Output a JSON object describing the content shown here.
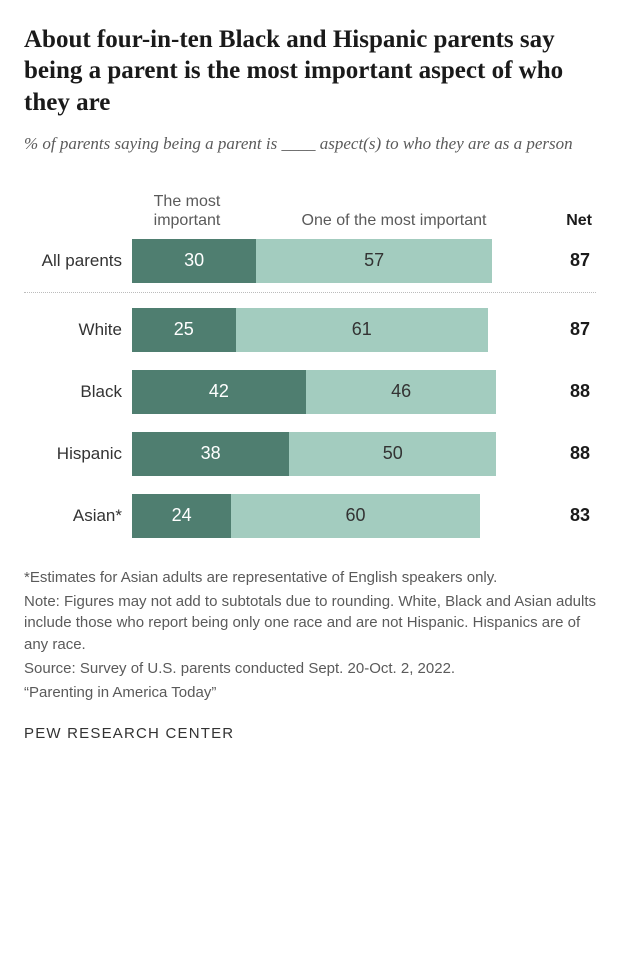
{
  "title": "About four-in-ten Black and Hispanic parents say being a parent is the most important aspect of who they are",
  "subtitle": "% of parents saying being a parent is ____ aspect(s) to who they are as a person",
  "chart": {
    "type": "bar",
    "scale_max": 100,
    "colors": {
      "most": "#4f7e70",
      "one_of": "#a3ccbf"
    },
    "headers": {
      "col1": "The most important",
      "col2": "One of the most important",
      "net": "Net"
    },
    "rows": [
      {
        "label": "All parents",
        "most": 30,
        "one_of": 57,
        "net": 87,
        "divider_after": true
      },
      {
        "label": "White",
        "most": 25,
        "one_of": 61,
        "net": 87
      },
      {
        "label": "Black",
        "most": 42,
        "one_of": 46,
        "net": 88
      },
      {
        "label": "Hispanic",
        "most": 38,
        "one_of": 50,
        "net": 88
      },
      {
        "label": "Asian*",
        "most": 24,
        "one_of": 60,
        "net": 83
      }
    ]
  },
  "footnotes": [
    "*Estimates for Asian adults are representative of English speakers only.",
    "Note: Figures may not add to subtotals due to rounding. White, Black and Asian adults include those who report being only one race and are not Hispanic. Hispanics are of any race.",
    "Source: Survey of U.S. parents conducted Sept. 20-Oct. 2, 2022.",
    "“Parenting in America Today”"
  ],
  "brand": "PEW RESEARCH CENTER"
}
